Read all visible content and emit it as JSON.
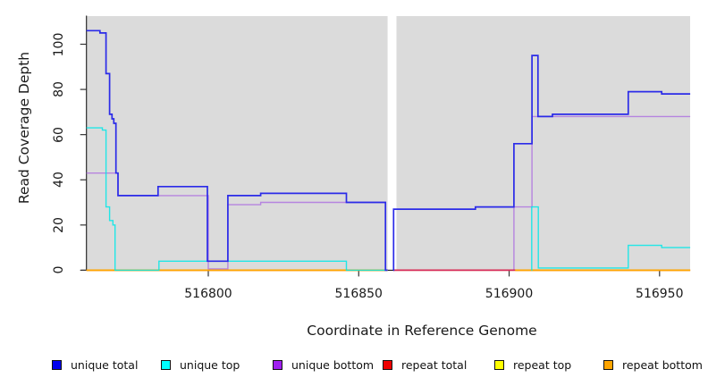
{
  "chart_data": {
    "type": "line",
    "title": "",
    "xlabel": "Coordinate in Reference Genome",
    "ylabel": "Read Coverage Depth",
    "xlim": [
      516759.5,
      516960.2
    ],
    "ylim": [
      0,
      112
    ],
    "x_ticks": [
      516800,
      516850,
      516900,
      516950
    ],
    "y_ticks": [
      0,
      20,
      40,
      60,
      80,
      100
    ],
    "grid": false,
    "panel_bg": "#DBDBDB",
    "background": "#FFFFFF",
    "gap_region": {
      "from": 516859.6,
      "to": 516861.3
    },
    "legend_position": "bottom",
    "line_style": "step-after",
    "draw_order": [
      "repeat top",
      "unique bottom",
      "repeat total",
      "repeat bottom",
      "unique top",
      "unique total"
    ],
    "series": [
      {
        "name": "unique total",
        "legend_color": "#0000EE",
        "color": "#2B2BE8",
        "width": 1.7,
        "opacity": 1,
        "segments": [
          {
            "points": [
              [
                516759.5,
                106
              ],
              [
                516764,
                105
              ],
              [
                516766,
                87
              ],
              [
                516767.2,
                69
              ],
              [
                516768,
                67
              ],
              [
                516768.6,
                65
              ],
              [
                516769.3,
                43
              ],
              [
                516770,
                33
              ],
              [
                516783.3,
                37
              ],
              [
                516799.7,
                4
              ],
              [
                516806.5,
                33
              ],
              [
                516817.4,
                34
              ],
              [
                516845.9,
                30
              ],
              [
                516858.9,
                0
              ]
            ],
            "end": 516859.6
          },
          {
            "points": [
              [
                516861.5,
                0
              ],
              [
                516861.6,
                27
              ],
              [
                516888.8,
                28
              ],
              [
                516901.6,
                56
              ],
              [
                516907.6,
                95
              ],
              [
                516909.6,
                68
              ],
              [
                516914.4,
                69
              ],
              [
                516939.6,
                79
              ],
              [
                516950.7,
                78
              ]
            ],
            "end": 516960.2
          }
        ]
      },
      {
        "name": "unique top",
        "legend_color": "#00FFFF",
        "color": "#00E8E8",
        "width": 1.4,
        "opacity": 0.85,
        "segments": [
          {
            "points": [
              [
                516759.5,
                63
              ],
              [
                516764.8,
                62
              ],
              [
                516766,
                28
              ],
              [
                516767.2,
                22
              ],
              [
                516768.3,
                20
              ],
              [
                516769,
                0
              ],
              [
                516783.6,
                4
              ],
              [
                516845.9,
                0
              ]
            ],
            "end": 516859.6
          },
          {
            "points": [
              [
                516907.4,
                0
              ],
              [
                516907.5,
                28
              ],
              [
                516909.7,
                1
              ],
              [
                516939.6,
                11
              ],
              [
                516950.7,
                10
              ]
            ],
            "end": 516960.2
          }
        ]
      },
      {
        "name": "unique bottom",
        "legend_color": "#A020F0",
        "color": "#AC6EE0",
        "width": 1.4,
        "opacity": 0.8,
        "segments": [
          {
            "points": [
              [
                516759.5,
                43
              ],
              [
                516770,
                33
              ],
              [
                516800,
                0.6
              ],
              [
                516806.5,
                29
              ],
              [
                516817.4,
                30
              ],
              [
                516858.9,
                0
              ]
            ],
            "end": 516859.6
          },
          {
            "points": [
              [
                516861.5,
                0
              ],
              [
                516901.6,
                28
              ],
              [
                516907.6,
                68
              ]
            ],
            "end": 516960.2
          }
        ]
      },
      {
        "name": "repeat total",
        "legend_color": "#EE0000",
        "color": "#DD1144",
        "width": 1.7,
        "opacity": 0.8,
        "segments": [
          {
            "points": [
              [
                516759.5,
                0
              ]
            ],
            "end": 516859.6
          },
          {
            "points": [
              [
                516861.5,
                0
              ]
            ],
            "end": 516960.2
          }
        ]
      },
      {
        "name": "repeat top",
        "legend_color": "#FFFF00",
        "color": "#F2F200",
        "width": 1.4,
        "opacity": 1,
        "segments": [
          {
            "points": [
              [
                516759.5,
                0
              ]
            ],
            "end": 516859.6
          },
          {
            "points": [
              [
                516861.5,
                0
              ]
            ],
            "end": 516960.2
          }
        ]
      },
      {
        "name": "repeat bottom",
        "legend_color": "#FFA500",
        "color": "#FFA500",
        "width": 1.9,
        "opacity": 1,
        "segments": [
          {
            "points": [
              [
                516759.5,
                0
              ]
            ],
            "end": 516859.6
          },
          {
            "points": [
              [
                516902,
                0
              ]
            ],
            "end": 516960.2
          }
        ]
      }
    ]
  }
}
